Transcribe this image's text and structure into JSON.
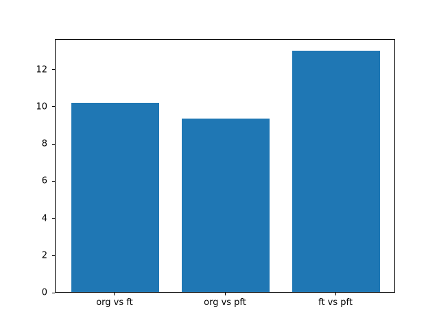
{
  "figure": {
    "background": "#ffffff",
    "title": ""
  },
  "chart_data": {
    "type": "bar",
    "title": "",
    "xlabel": "",
    "ylabel": "",
    "categories": [
      "org vs ft",
      "org vs pft",
      "ft vs pft"
    ],
    "values": [
      10.2,
      9.35,
      13.0
    ],
    "yticks": [
      0,
      2,
      4,
      6,
      8,
      10,
      12
    ],
    "ylim": [
      0,
      13.65
    ],
    "xlim": [
      -0.54,
      2.54
    ],
    "bar_width_fraction": 0.8,
    "bar_color": "#1f77b4",
    "axis_color": "#000000",
    "grid": false,
    "legend": null
  }
}
